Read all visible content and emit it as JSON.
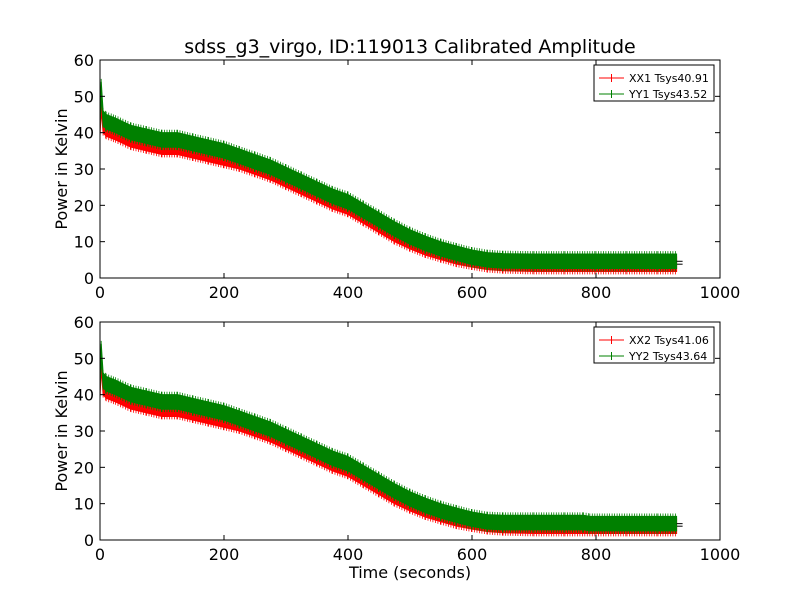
{
  "figure": {
    "title": "sdss_g3_virgo, ID:119013 Calibrated Amplitude"
  },
  "chart_data": [
    {
      "type": "line",
      "title": "sdss_g3_virgo, ID:119013 Calibrated Amplitude",
      "xlabel": "",
      "ylabel": "Power in Kelvin",
      "xlim": [
        0,
        1000
      ],
      "ylim": [
        0,
        60
      ],
      "xticks": [
        0,
        200,
        400,
        600,
        800,
        1000
      ],
      "yticks": [
        0,
        10,
        20,
        30,
        40,
        50,
        60
      ],
      "grid": false,
      "legend_position": "top-right",
      "series": [
        {
          "name": "XX1 Tsys40.91",
          "color": "#ff0000",
          "x": [
            0,
            2,
            5,
            10,
            25,
            50,
            75,
            100,
            125,
            150,
            175,
            200,
            225,
            250,
            275,
            300,
            325,
            350,
            375,
            400,
            425,
            450,
            475,
            500,
            525,
            550,
            575,
            600,
            625,
            650,
            700,
            750,
            800,
            850,
            900,
            930
          ],
          "y": [
            41,
            48,
            42,
            41,
            40,
            38,
            37,
            36,
            36,
            35,
            34,
            33,
            32,
            30.5,
            29,
            27,
            25,
            23,
            21,
            19.5,
            17,
            14.5,
            12,
            10,
            8.3,
            7,
            5.8,
            5,
            4.3,
            4,
            3.8,
            3.8,
            3.8,
            3.8,
            3.8,
            3.8
          ],
          "band": 2.0
        },
        {
          "name": "YY1 Tsys43.52",
          "color": "#008000",
          "x": [
            0,
            2,
            5,
            10,
            25,
            50,
            75,
            100,
            125,
            150,
            175,
            200,
            225,
            250,
            275,
            300,
            325,
            350,
            375,
            400,
            425,
            450,
            475,
            500,
            525,
            550,
            575,
            600,
            625,
            650,
            700,
            750,
            800,
            850,
            900,
            930
          ],
          "y": [
            43.5,
            52,
            44,
            43,
            42,
            40,
            39,
            38,
            38,
            37,
            36,
            35,
            33.5,
            32,
            30.5,
            28.5,
            26.5,
            24.5,
            22.5,
            21,
            18.5,
            16,
            13.5,
            11.3,
            9.5,
            8,
            6.8,
            5.7,
            5,
            4.7,
            4.6,
            4.6,
            4.6,
            4.6,
            4.6,
            4.6
          ],
          "band": 2.0
        }
      ]
    },
    {
      "type": "line",
      "title": "",
      "xlabel": "Time (seconds)",
      "ylabel": "Power in Kelvin",
      "xlim": [
        0,
        1000
      ],
      "ylim": [
        0,
        60
      ],
      "xticks": [
        0,
        200,
        400,
        600,
        800,
        1000
      ],
      "yticks": [
        0,
        10,
        20,
        30,
        40,
        50,
        60
      ],
      "grid": false,
      "legend_position": "top-right",
      "series": [
        {
          "name": "XX2 Tsys41.06",
          "color": "#ff0000",
          "x": [
            0,
            2,
            5,
            10,
            25,
            50,
            75,
            100,
            125,
            150,
            175,
            200,
            225,
            250,
            275,
            300,
            325,
            350,
            375,
            400,
            425,
            450,
            475,
            500,
            525,
            550,
            575,
            600,
            625,
            650,
            700,
            750,
            800,
            850,
            900,
            930
          ],
          "y": [
            41,
            49,
            42,
            41,
            40,
            38,
            37,
            36,
            36,
            35,
            34,
            33,
            32,
            30.5,
            29,
            27,
            25,
            23,
            21,
            19.5,
            17,
            14.5,
            12,
            10,
            8.3,
            7,
            5.8,
            5,
            4.3,
            4,
            3.8,
            3.8,
            3.8,
            3.8,
            3.8,
            3.8
          ],
          "band": 2.0
        },
        {
          "name": "YY2 Tsys43.64",
          "color": "#008000",
          "x": [
            0,
            2,
            5,
            10,
            25,
            50,
            75,
            100,
            125,
            150,
            175,
            200,
            225,
            250,
            275,
            300,
            325,
            350,
            375,
            400,
            425,
            450,
            475,
            500,
            525,
            550,
            575,
            600,
            625,
            650,
            700,
            750,
            780,
            790,
            850,
            900,
            930
          ],
          "y": [
            43.5,
            52,
            44,
            43,
            42,
            40,
            39,
            38,
            38,
            37,
            36,
            35,
            33.5,
            32,
            30.5,
            28.5,
            26.5,
            24.5,
            22.5,
            21,
            18.5,
            16,
            13.5,
            11.3,
            9.5,
            8,
            6.8,
            5.7,
            5,
            4.8,
            4.8,
            4.8,
            4.8,
            4.5,
            4.5,
            4.5,
            4.5
          ],
          "band": 2.0
        }
      ]
    }
  ]
}
